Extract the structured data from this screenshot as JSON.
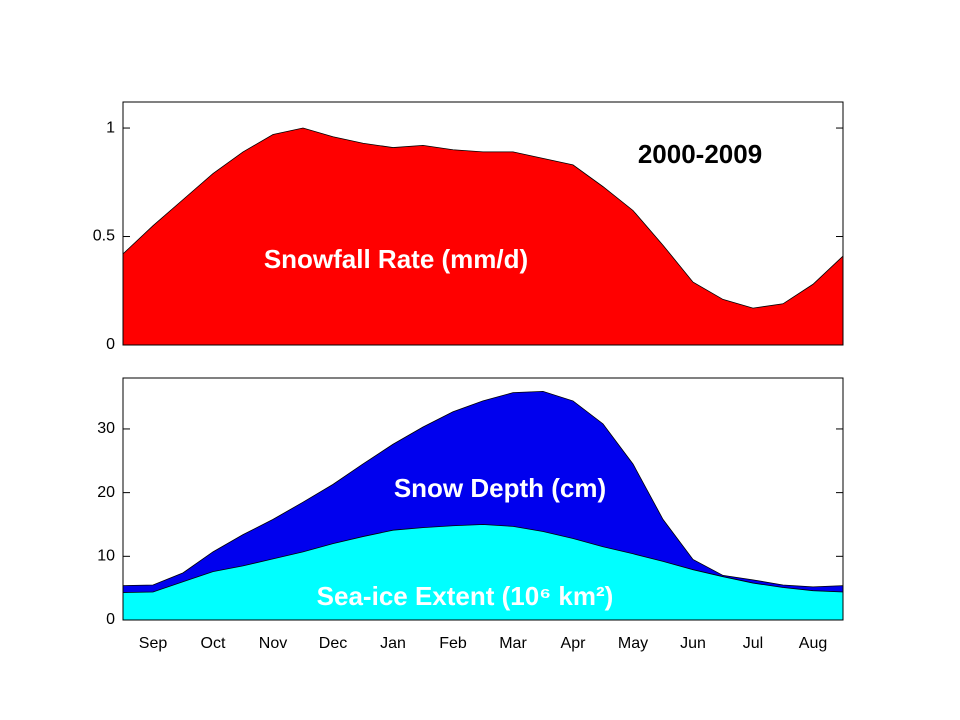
{
  "chart_data": [
    {
      "type": "area",
      "x": [
        0,
        0.5,
        1,
        1.5,
        2,
        2.5,
        3,
        3.5,
        4,
        4.5,
        5,
        5.5,
        6,
        6.5,
        7,
        7.5,
        8,
        8.5,
        9,
        9.5,
        10,
        10.5,
        11,
        11.5,
        12
      ],
      "xlim": [
        0,
        12
      ],
      "ylim": [
        0,
        1.12
      ],
      "yticks": [
        0,
        0.5,
        1
      ],
      "series": [
        {
          "name": "Snowfall Rate (mm/d)",
          "color": "#ff0000",
          "values": [
            0.42,
            0.55,
            0.67,
            0.79,
            0.89,
            0.97,
            1.0,
            0.96,
            0.93,
            0.91,
            0.92,
            0.9,
            0.89,
            0.89,
            0.86,
            0.83,
            0.73,
            0.62,
            0.46,
            0.29,
            0.21,
            0.17,
            0.19,
            0.28,
            0.41
          ]
        }
      ],
      "annotations": [
        "2000-2009",
        "Snowfall Rate (mm/d)"
      ]
    },
    {
      "type": "area",
      "x": [
        0,
        0.5,
        1,
        1.5,
        2,
        2.5,
        3,
        3.5,
        4,
        4.5,
        5,
        5.5,
        6,
        6.5,
        7,
        7.5,
        8,
        8.5,
        9,
        9.5,
        10,
        10.5,
        11,
        11.5,
        12
      ],
      "xlim": [
        0,
        12
      ],
      "categories": [
        "Sep",
        "Oct",
        "Nov",
        "Dec",
        "Jan",
        "Feb",
        "Mar",
        "Apr",
        "May",
        "Jun",
        "Jul",
        "Aug"
      ],
      "ylim": [
        0,
        38
      ],
      "yticks": [
        0,
        10,
        20,
        30
      ],
      "series": [
        {
          "name": "Snow Depth (cm)",
          "color": "#0000ee",
          "values": [
            5.4,
            5.5,
            7.4,
            10.7,
            13.4,
            15.8,
            18.5,
            21.3,
            24.5,
            27.6,
            30.3,
            32.7,
            34.4,
            35.7,
            35.9,
            34.4,
            30.8,
            24.5,
            15.8,
            9.5,
            7.0,
            6.3,
            5.5,
            5.2,
            5.4
          ]
        },
        {
          "name": "Sea-ice Extent (10⁶ km²)",
          "color": "#00ffff",
          "values": [
            4.3,
            4.4,
            6.0,
            7.6,
            8.5,
            9.6,
            10.7,
            12.0,
            13.1,
            14.1,
            14.5,
            14.8,
            15.0,
            14.7,
            13.9,
            12.8,
            11.5,
            10.4,
            9.2,
            7.9,
            6.8,
            5.8,
            5.1,
            4.6,
            4.4
          ]
        }
      ],
      "annotations": [
        "Snow Depth (cm)",
        "Sea-ice Extent (10⁶ km²)"
      ]
    }
  ]
}
